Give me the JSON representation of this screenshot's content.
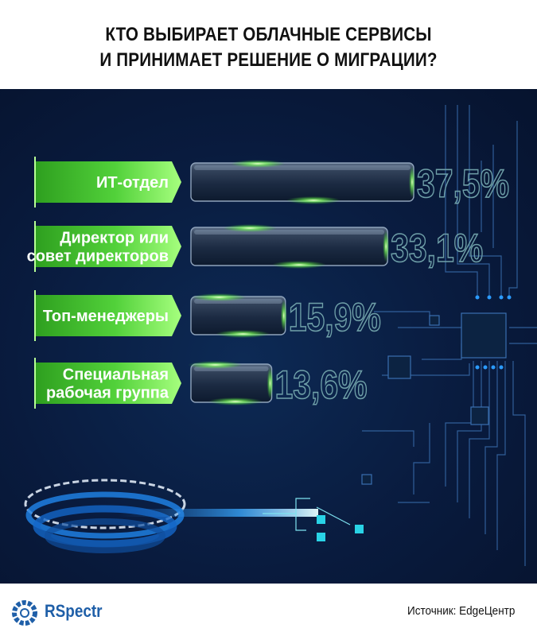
{
  "header": {
    "title_line1": "КТО ВЫБИРАЕТ ОБЛАЧНЫЕ СЕРВИСЫ",
    "title_line2": "И ПРИНИМАЕТ РЕШЕНИЕ О МИГРАЦИИ?"
  },
  "footer": {
    "brand": "RSpectr",
    "source": "Источник: EdgeЦентр"
  },
  "colors": {
    "background": "#091b3e",
    "label_green": "#3fbf2a",
    "label_green_light": "#8ff56a",
    "value_outline": "#6fa0a8",
    "brand_blue": "#1f5fa8"
  },
  "chart_data": {
    "type": "bar",
    "orientation": "horizontal",
    "categories": [
      [
        "ИТ-отдел"
      ],
      [
        "Директор или",
        "совет директоров"
      ],
      [
        "Топ-менеджеры"
      ],
      [
        "Специальная",
        "рабочая группа"
      ]
    ],
    "values": [
      37.5,
      33.1,
      15.9,
      13.6
    ],
    "value_labels": [
      "37,5%",
      "33,1%",
      "15,9%",
      "13,6%"
    ],
    "unit": "%",
    "title": "КТО ВЫБИРАЕТ ОБЛАЧНЫЕ СЕРВИСЫ И ПРИНИМАЕТ РЕШЕНИЕ О МИГРАЦИИ?",
    "xlim": [
      0,
      37.5
    ]
  }
}
